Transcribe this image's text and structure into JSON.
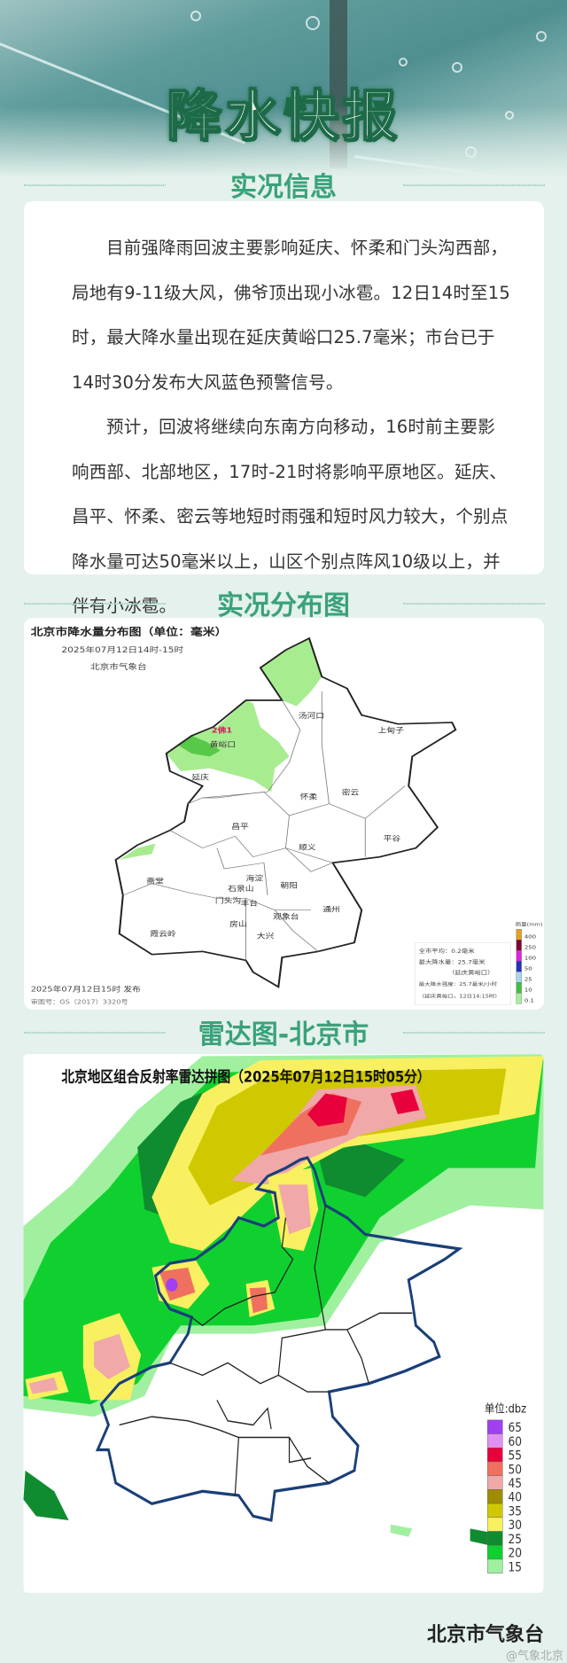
{
  "header": {
    "title": "降水快报"
  },
  "sections": {
    "info": "实况信息",
    "distribution": "实况分布图",
    "radar": "雷达图-北京市"
  },
  "info": {
    "paragraphs": [
      "目前强降雨回波主要影响延庆、怀柔和门头沟西部，局地有9-11级大风，佛爷顶出现小冰雹。12日14时至15时，最大降水量出现在延庆黄峪口25.7毫米；市台已于14时30分发布大风蓝色预警信号。",
      "预计，回波将继续向东南方向移动，16时前主要影响西部、北部地区，17时-21时将影响平原地区。延庆、昌平、怀柔、密云等地短时雨强和短时风力较大，个别点降水量可达50毫米以上，山区个别点阵风10级以上，并伴有小冰雹。"
    ]
  },
  "precip_map": {
    "title": "北京市降水量分布图（单位：毫米）",
    "period": "2025年07月12日14时-15时",
    "issuer": "北京市气象台",
    "issued": "2025年07月12日15时 发布",
    "map_no": "审图号：GS（2017）3320号",
    "marker": "2佛1",
    "places": [
      "汤河口",
      "上甸子",
      "黄峪口",
      "延庆",
      "怀柔",
      "密云",
      "昌平",
      "平谷",
      "顺义",
      "斋堂",
      "海淀",
      "石景山",
      "朝阳",
      "门头沟",
      "丰台",
      "通州",
      "观象台",
      "房山",
      "大兴",
      "霞云岭"
    ],
    "stats": [
      "全市平均：0.2毫米",
      "最大降水量：25.7毫米",
      "（延庆黄峪口）",
      "最大降水强度：25.7毫米/小时",
      "（延庆黄峪口，12日14:15时）"
    ],
    "legend_title": "雨量(mm)",
    "legend": [
      {
        "label": "400",
        "color": "#e8a020"
      },
      {
        "label": "250",
        "color": "#800030"
      },
      {
        "label": "100",
        "color": "#e020e0"
      },
      {
        "label": "50",
        "color": "#2030c0"
      },
      {
        "label": "25",
        "color": "#a8d8f0"
      },
      {
        "label": "10",
        "color": "#40c040"
      },
      {
        "label": "0.1",
        "color": "#a8f0a0"
      }
    ]
  },
  "radar_map": {
    "title": "北京地区组合反射率雷达拼图（2025年07月12日15时05分）",
    "legend_title": "单位:dbz",
    "legend": [
      {
        "label": "65",
        "color": "#a040f0"
      },
      {
        "label": "60",
        "color": "#e090f0"
      },
      {
        "label": "55",
        "color": "#e8003c"
      },
      {
        "label": "50",
        "color": "#f07060"
      },
      {
        "label": "45",
        "color": "#f0a8a8"
      },
      {
        "label": "40",
        "color": "#a08c00"
      },
      {
        "label": "35",
        "color": "#d0c800"
      },
      {
        "label": "30",
        "color": "#f8f060"
      },
      {
        "label": "25",
        "color": "#108c30"
      },
      {
        "label": "20",
        "color": "#10d030"
      },
      {
        "label": "15",
        "color": "#a0f0a0"
      }
    ]
  },
  "footer": {
    "org": "北京市气象台",
    "watermark": "@气象北京"
  }
}
